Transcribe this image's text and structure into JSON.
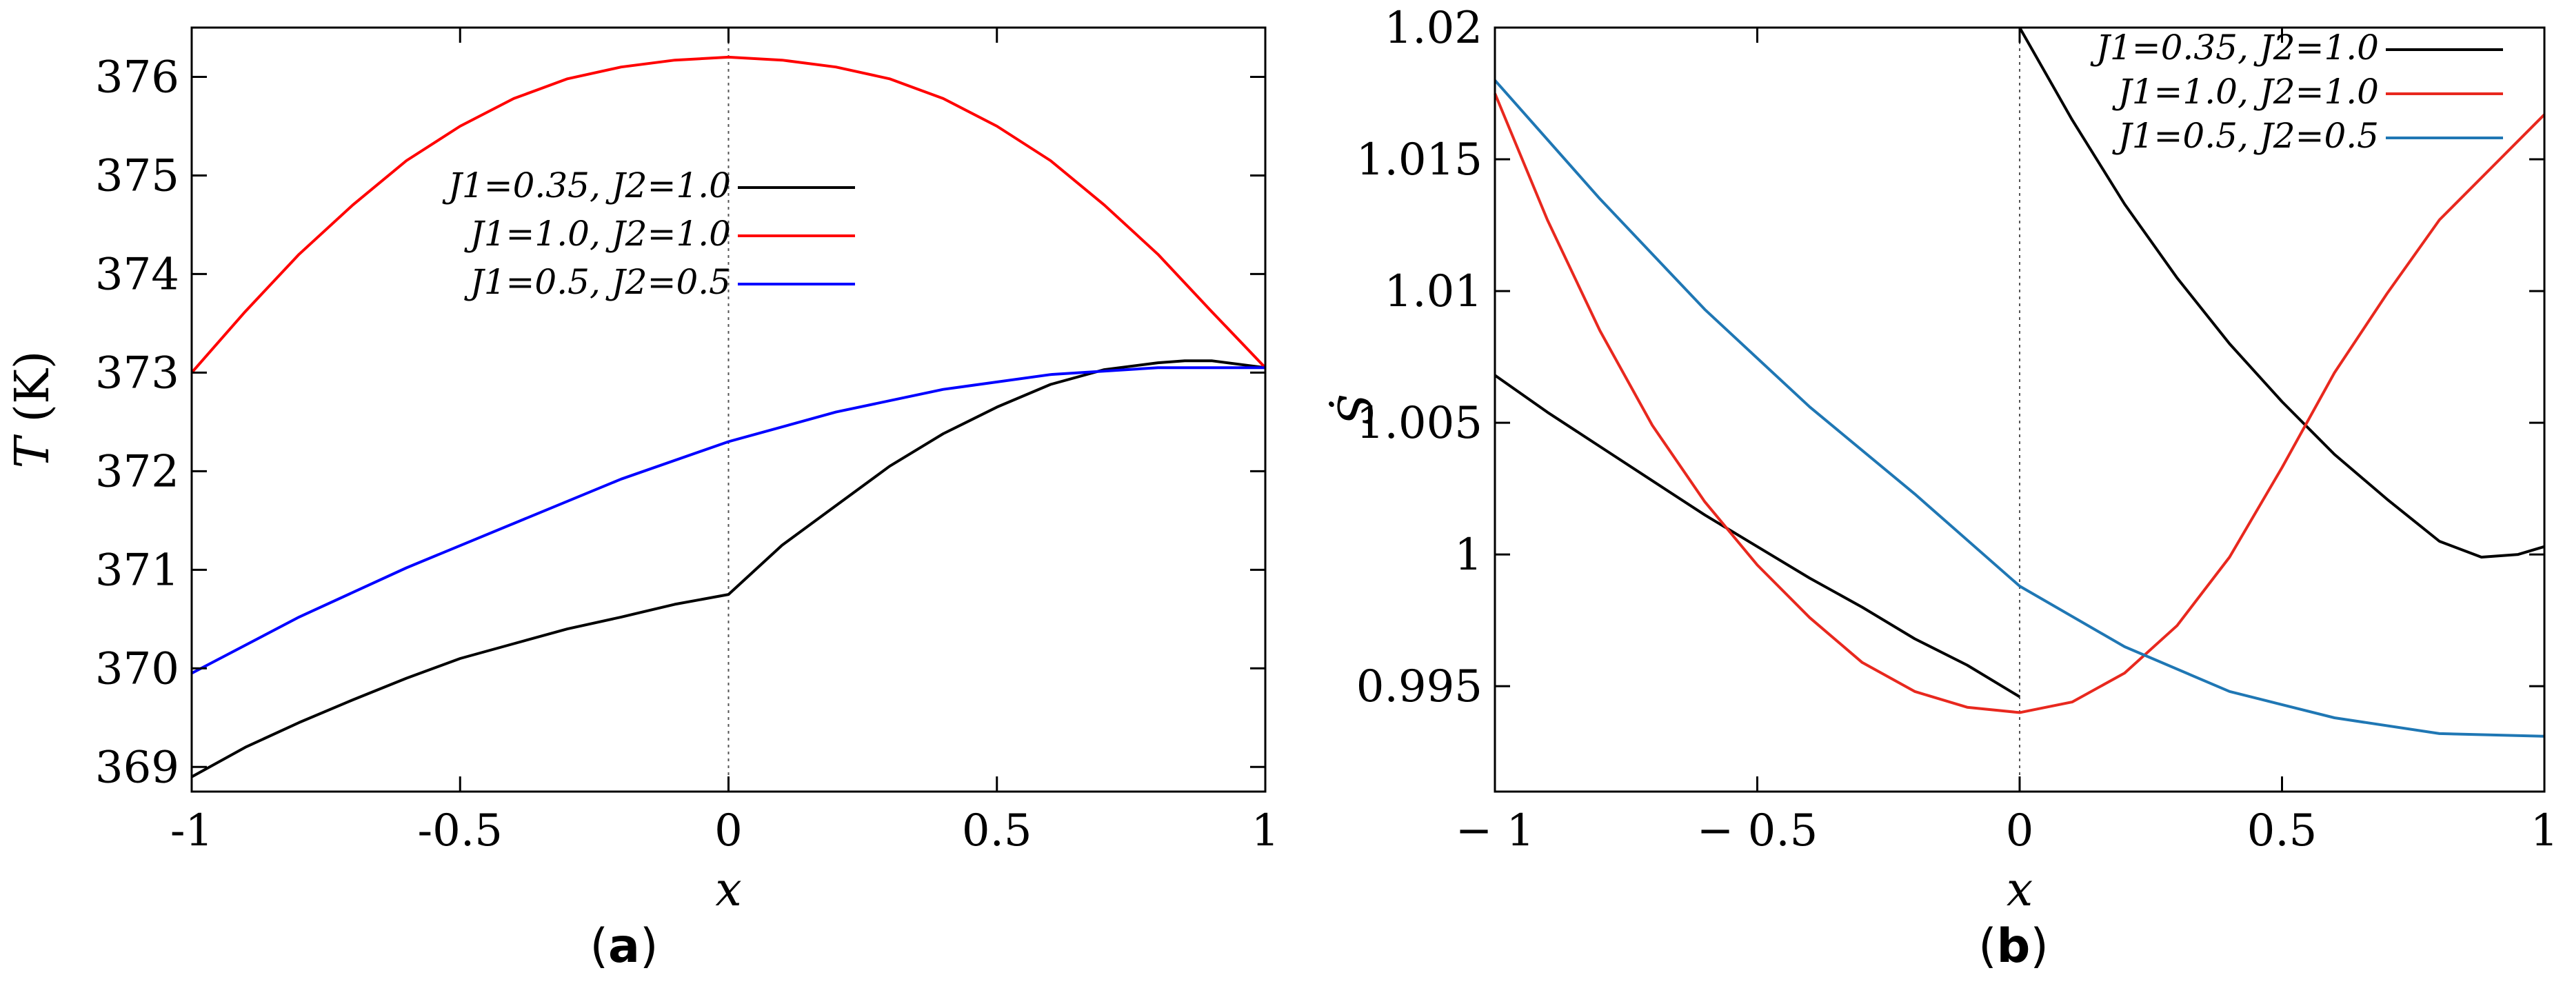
{
  "chart_data": [
    {
      "type": "line",
      "panel_label": "(a)",
      "panel_letter": "a",
      "xlabel": "x",
      "ylabel": "T (K)",
      "ylabel_var": "T",
      "ylabel_unit": "(K)",
      "xlim": [
        -1,
        1
      ],
      "ylim": [
        368.75,
        376.5
      ],
      "xticks": [
        -1,
        -0.5,
        0,
        0.5,
        1
      ],
      "xtick_labels": [
        "-1",
        "-0.5",
        "0",
        "0.5",
        "1"
      ],
      "yticks": [
        369,
        370,
        371,
        372,
        373,
        374,
        375,
        376
      ],
      "ytick_labels": [
        "369",
        "370",
        "371",
        "372",
        "373",
        "374",
        "375",
        "376"
      ],
      "legend_position": "center",
      "series": [
        {
          "name": "J1=0.35, J2=1.0",
          "color": "#000000",
          "x": [
            -1,
            -0.9,
            -0.8,
            -0.7,
            -0.6,
            -0.5,
            -0.4,
            -0.3,
            -0.2,
            -0.1,
            0,
            0.1,
            0.2,
            0.3,
            0.4,
            0.5,
            0.6,
            0.7,
            0.8,
            0.85,
            0.9,
            1
          ],
          "y": [
            368.9,
            369.2,
            369.45,
            369.68,
            369.9,
            370.1,
            370.25,
            370.4,
            370.52,
            370.65,
            370.75,
            371.25,
            371.65,
            372.05,
            372.38,
            372.65,
            372.88,
            373.03,
            373.1,
            373.12,
            373.12,
            373.05
          ]
        },
        {
          "name": "J1=1.0, J2=1.0",
          "color": "#ff0000",
          "x": [
            -1,
            -0.9,
            -0.8,
            -0.7,
            -0.6,
            -0.5,
            -0.4,
            -0.3,
            -0.2,
            -0.1,
            0,
            0.1,
            0.2,
            0.3,
            0.4,
            0.5,
            0.6,
            0.7,
            0.8,
            0.9,
            1
          ],
          "y": [
            373.0,
            373.62,
            374.2,
            374.7,
            375.15,
            375.5,
            375.78,
            375.98,
            376.1,
            376.17,
            376.2,
            376.17,
            376.1,
            375.98,
            375.78,
            375.5,
            375.15,
            374.7,
            374.2,
            373.62,
            373.05
          ]
        },
        {
          "name": "J1=0.5, J2=0.5",
          "color": "#0000ff",
          "x": [
            -1,
            -0.8,
            -0.6,
            -0.4,
            -0.2,
            0,
            0.2,
            0.4,
            0.6,
            0.8,
            1
          ],
          "y": [
            369.95,
            370.52,
            371.02,
            371.47,
            371.92,
            372.3,
            372.6,
            372.83,
            372.98,
            373.05,
            373.05
          ]
        }
      ]
    },
    {
      "type": "line",
      "panel_label": "(b)",
      "panel_letter": "b",
      "xlabel": "x",
      "ylabel": "Ṡ",
      "xlim": [
        -1,
        1
      ],
      "ylim": [
        0.991,
        1.02
      ],
      "xticks": [
        -1,
        -0.5,
        0,
        0.5,
        1
      ],
      "xtick_labels": [
        "− 1",
        "− 0.5",
        "0",
        "0.5",
        "1"
      ],
      "yticks": [
        0.995,
        1,
        1.005,
        1.01,
        1.015,
        1.02
      ],
      "ytick_labels": [
        "0.995",
        "1",
        "1.005",
        "1.01",
        "1.015",
        "1.02"
      ],
      "legend_position": "top-right",
      "series": [
        {
          "name": "J1=0.35, J2=1.0",
          "color": "#000000",
          "x": [
            -1,
            -0.9,
            -0.8,
            -0.7,
            -0.6,
            -0.5,
            -0.4,
            -0.3,
            -0.2,
            -0.1,
            0,
            0.0,
            0.1,
            0.2,
            0.3,
            0.4,
            0.5,
            0.6,
            0.7,
            0.8,
            0.88,
            0.95,
            1
          ],
          "y": [
            1.0068,
            1.0054,
            1.0041,
            1.0028,
            1.0015,
            1.0003,
            0.9991,
            0.998,
            0.9968,
            0.9958,
            0.9946,
            1.02,
            1.0165,
            1.0133,
            1.0105,
            1.008,
            1.0058,
            1.0038,
            1.0021,
            1.0005,
            0.9999,
            1.0,
            1.0003
          ]
        },
        {
          "name": "J1=1.0, J2=1.0",
          "color": "#e8281e",
          "x": [
            -1,
            -0.9,
            -0.8,
            -0.7,
            -0.6,
            -0.5,
            -0.4,
            -0.3,
            -0.2,
            -0.1,
            0,
            0.1,
            0.2,
            0.3,
            0.4,
            0.5,
            0.6,
            0.7,
            0.8,
            0.9,
            1
          ],
          "y": [
            1.0175,
            1.0127,
            1.0085,
            1.0049,
            1.002,
            0.9996,
            0.9976,
            0.9959,
            0.9948,
            0.9942,
            0.994,
            0.9944,
            0.9955,
            0.9973,
            0.9999,
            1.0033,
            1.0069,
            1.0099,
            1.0127,
            1.0147,
            1.0167
          ]
        },
        {
          "name": "J1=0.5, J2=0.5",
          "color": "#1f77b4",
          "x": [
            -1,
            -0.8,
            -0.6,
            -0.4,
            -0.2,
            0,
            0.2,
            0.4,
            0.6,
            0.8,
            1
          ],
          "y": [
            1.018,
            1.0135,
            1.0093,
            1.0056,
            1.0023,
            0.9988,
            0.9965,
            0.9948,
            0.9938,
            0.9932,
            0.9931
          ]
        }
      ]
    }
  ]
}
